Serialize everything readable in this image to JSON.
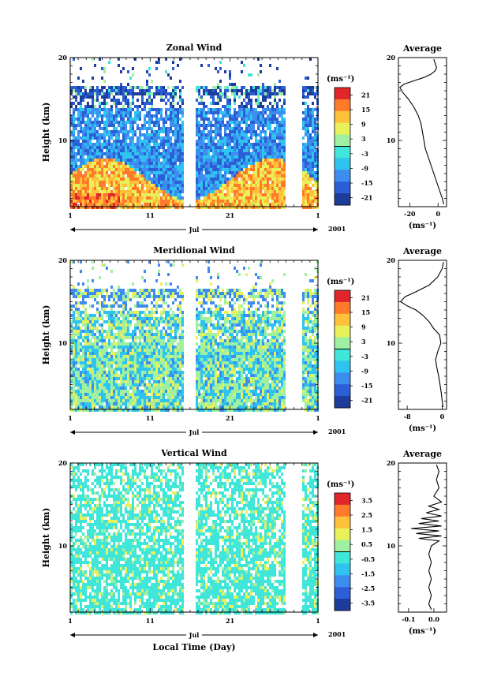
{
  "chart_data": [
    {
      "type": "heatmap",
      "title": "Zonal Wind",
      "ylabel": "Height (km)",
      "ylim": [
        2,
        20
      ],
      "yticks": [
        "10",
        "20"
      ],
      "xlabel": "",
      "xlim": [
        1,
        32
      ],
      "xticks": [
        "1",
        "11",
        "21",
        "1"
      ],
      "month_label": "Jul",
      "year_label": "2001",
      "data_gaps_days": [
        [
          15.0,
          16.6
        ],
        [
          27.8,
          30.0
        ]
      ],
      "colorbar": {
        "unit": "(ms⁻¹)",
        "ticks": [
          "21",
          "15",
          "9",
          "3",
          "-3",
          "-9",
          "-15",
          "-21"
        ],
        "range": [
          -24,
          24
        ]
      },
      "average_profile": {
        "title": "Average",
        "xlabel": "(ms⁻¹)",
        "xticks": [
          "-20",
          "0"
        ],
        "xlim": [
          -28,
          6
        ],
        "ylim": [
          2,
          20
        ],
        "points": [
          [
            4,
            2.3
          ],
          [
            3,
            3
          ],
          [
            1,
            4
          ],
          [
            -1,
            5
          ],
          [
            -3,
            6
          ],
          [
            -5,
            7
          ],
          [
            -7,
            8
          ],
          [
            -9,
            9
          ],
          [
            -10,
            10
          ],
          [
            -11,
            11
          ],
          [
            -12,
            12
          ],
          [
            -14,
            13
          ],
          [
            -17,
            14
          ],
          [
            -21,
            15
          ],
          [
            -25,
            15.8
          ],
          [
            -27,
            16.4
          ],
          [
            -24,
            16.8
          ],
          [
            -17,
            17.2
          ],
          [
            -10,
            17.6
          ],
          [
            -5,
            18
          ],
          [
            -2,
            18.4
          ],
          [
            -1,
            18.8
          ],
          [
            -2,
            19.3
          ],
          [
            -3,
            19.8
          ]
        ]
      }
    },
    {
      "type": "heatmap",
      "title": "Meridional Wind",
      "ylabel": "Height (km)",
      "ylim": [
        2,
        20
      ],
      "yticks": [
        "10",
        "20"
      ],
      "xlabel": "",
      "xlim": [
        1,
        32
      ],
      "xticks": [
        "1",
        "11",
        "21",
        "1"
      ],
      "month_label": "Jul",
      "year_label": "2001",
      "data_gaps_days": [
        [
          15.0,
          16.6
        ],
        [
          27.8,
          30.0
        ]
      ],
      "colorbar": {
        "unit": "(ms⁻¹)",
        "ticks": [
          "21",
          "15",
          "9",
          "3",
          "-3",
          "-9",
          "-15",
          "-21"
        ],
        "range": [
          -24,
          24
        ]
      },
      "average_profile": {
        "title": "Average",
        "xlabel": "(ms⁻¹)",
        "xticks": [
          "-8",
          "0"
        ],
        "xlim": [
          -10,
          1
        ],
        "ylim": [
          2,
          20
        ],
        "points": [
          [
            0.2,
            2.3
          ],
          [
            0,
            3
          ],
          [
            -0.2,
            4
          ],
          [
            -0.5,
            5
          ],
          [
            -0.8,
            6
          ],
          [
            -1.2,
            7
          ],
          [
            -1.5,
            8
          ],
          [
            -1,
            9
          ],
          [
            -0.3,
            10
          ],
          [
            -0.6,
            11
          ],
          [
            -2,
            11.8
          ],
          [
            -3,
            12.6
          ],
          [
            -4.5,
            13.4
          ],
          [
            -6,
            14
          ],
          [
            -8,
            14.5
          ],
          [
            -9.5,
            15
          ],
          [
            -8.5,
            15.6
          ],
          [
            -6,
            16.2
          ],
          [
            -3,
            17
          ],
          [
            -1,
            18
          ],
          [
            0,
            19
          ],
          [
            0.3,
            19.8
          ]
        ]
      }
    },
    {
      "type": "heatmap",
      "title": "Vertical Wind",
      "ylabel": "Height (km)",
      "ylim": [
        2,
        20
      ],
      "yticks": [
        "10",
        "20"
      ],
      "xlabel": "Local Time (Day)",
      "xlim": [
        1,
        32
      ],
      "xticks": [
        "1",
        "11",
        "21",
        "1"
      ],
      "month_label": "Jul",
      "year_label": "2001",
      "data_gaps_days": [
        [
          15.0,
          16.6
        ],
        [
          27.8,
          30.0
        ]
      ],
      "colorbar": {
        "unit": "(ms⁻¹)",
        "ticks": [
          "3.5",
          "2.5",
          "1.5",
          "0.5",
          "-0.5",
          "-1.5",
          "-2.5",
          "-3.5"
        ],
        "range": [
          -4,
          4
        ]
      },
      "average_profile": {
        "title": "Average",
        "xlabel": "(ms⁻¹)",
        "xticks": [
          "-0.1",
          "0.0"
        ],
        "xlim": [
          -0.14,
          0.05
        ],
        "ylim": [
          2,
          20
        ],
        "points": [
          [
            -0.01,
            2.3
          ],
          [
            -0.02,
            3
          ],
          [
            -0.01,
            4
          ],
          [
            -0.02,
            5
          ],
          [
            -0.01,
            6
          ],
          [
            -0.02,
            7
          ],
          [
            -0.01,
            8
          ],
          [
            -0.02,
            9
          ],
          [
            -0.01,
            10
          ],
          [
            0.02,
            10.6
          ],
          [
            -0.06,
            10.9
          ],
          [
            0.03,
            11.2
          ],
          [
            -0.07,
            11.5
          ],
          [
            0.02,
            11.8
          ],
          [
            -0.09,
            12.1
          ],
          [
            0.03,
            12.4
          ],
          [
            -0.06,
            12.7
          ],
          [
            0.02,
            13
          ],
          [
            -0.05,
            13.3
          ],
          [
            0.03,
            13.6
          ],
          [
            -0.03,
            14
          ],
          [
            0.02,
            14.4
          ],
          [
            -0.02,
            14.8
          ],
          [
            0.03,
            15.3
          ],
          [
            0,
            16
          ],
          [
            0.02,
            17
          ],
          [
            0.01,
            18
          ],
          [
            0.02,
            19
          ],
          [
            0.01,
            19.8
          ]
        ]
      }
    }
  ],
  "colors": {
    "colormap": [
      "#1e3c9a",
      "#2c5fd6",
      "#3d8cf0",
      "#2fc3f0",
      "#3fe6d9",
      "#9ff0a0",
      "#e8f05a",
      "#ffc03a",
      "#ff7a2a",
      "#e0262a"
    ]
  }
}
